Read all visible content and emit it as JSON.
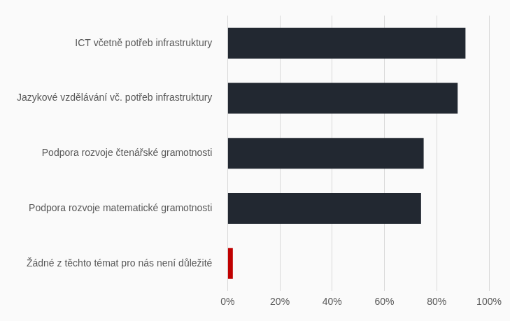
{
  "chart_data": {
    "type": "bar",
    "orientation": "horizontal",
    "categories": [
      "ICT včetně potřeb infrastruktury",
      "Jazykové vzdělávání vč. potřeb infrastruktury",
      "Podpora rozvoje čtenářské gramotnosti",
      "Podpora rozvoje matematické gramotnosti",
      "Žádné z těchto témat pro nás není důležité"
    ],
    "values": [
      91,
      88,
      75,
      74,
      2
    ],
    "colors": [
      "#222831",
      "#222831",
      "#222831",
      "#222831",
      "#c00000"
    ],
    "xlim": [
      0,
      100
    ],
    "xticks": [
      {
        "value": 0,
        "label": "0%"
      },
      {
        "value": 20,
        "label": "20%"
      },
      {
        "value": 40,
        "label": "40%"
      },
      {
        "value": 60,
        "label": "60%"
      },
      {
        "value": 80,
        "label": "80%"
      },
      {
        "value": 100,
        "label": "100%"
      }
    ],
    "grid": true
  }
}
